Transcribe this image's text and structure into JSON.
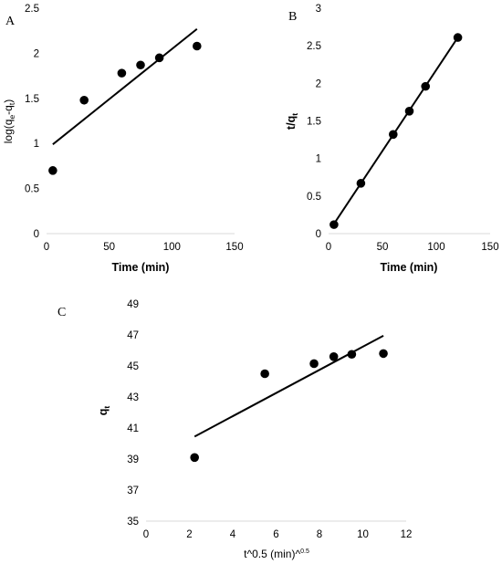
{
  "chart_data": [
    {
      "type": "scatter",
      "panel_label": "A",
      "xlabel": "Time (min)",
      "ylabel": "log(qe-qt)",
      "xlim": [
        0,
        150
      ],
      "ylim": [
        0,
        2.5
      ],
      "xticks": [
        "0",
        "50",
        "100",
        "150"
      ],
      "yticks": [
        "0",
        "0.5",
        "1",
        "1.5",
        "2",
        "2.5"
      ],
      "series": [
        {
          "x": [
            5,
            30,
            60,
            75,
            90,
            120
          ],
          "y": [
            0.7,
            1.48,
            1.78,
            1.87,
            1.95,
            2.08
          ]
        }
      ],
      "trendline": {
        "x": [
          5,
          120
        ],
        "y": [
          0.99,
          2.27
        ]
      },
      "grid": false
    },
    {
      "type": "scatter",
      "panel_label": "B",
      "xlabel": "Time (min)",
      "ylabel": "t/qt",
      "xlim": [
        0,
        150
      ],
      "ylim": [
        0,
        3
      ],
      "xticks": [
        "0",
        "50",
        "100",
        "150"
      ],
      "yticks": [
        "0",
        "0.5",
        "1",
        "1.5",
        "2",
        "2.5",
        "3"
      ],
      "series": [
        {
          "x": [
            5,
            30,
            60,
            75,
            90,
            120
          ],
          "y": [
            0.12,
            0.67,
            1.32,
            1.63,
            1.96,
            2.61
          ]
        }
      ],
      "trendline": {
        "x": [
          5,
          120
        ],
        "y": [
          0.13,
          2.61
        ]
      },
      "grid": false
    },
    {
      "type": "scatter",
      "panel_label": "C",
      "xlabel": "t^0.5 (min)^0.5",
      "ylabel": "qt",
      "xlim": [
        0,
        12
      ],
      "ylim": [
        35,
        49
      ],
      "xticks": [
        "0",
        "2",
        "4",
        "6",
        "8",
        "10",
        "12"
      ],
      "yticks": [
        "35",
        "37",
        "39",
        "41",
        "43",
        "45",
        "47",
        "49"
      ],
      "series": [
        {
          "x": [
            2.24,
            5.48,
            7.75,
            8.66,
            9.49,
            10.95
          ],
          "y": [
            39.1,
            44.5,
            45.15,
            45.6,
            45.75,
            45.8
          ]
        }
      ],
      "trendline": {
        "x": [
          2.24,
          10.95
        ],
        "y": [
          40.45,
          46.95
        ]
      },
      "grid": false
    }
  ],
  "colors": {
    "marker": "#000000",
    "line": "#000000",
    "axis": "#d9d9d9",
    "background": "#ffffff"
  }
}
